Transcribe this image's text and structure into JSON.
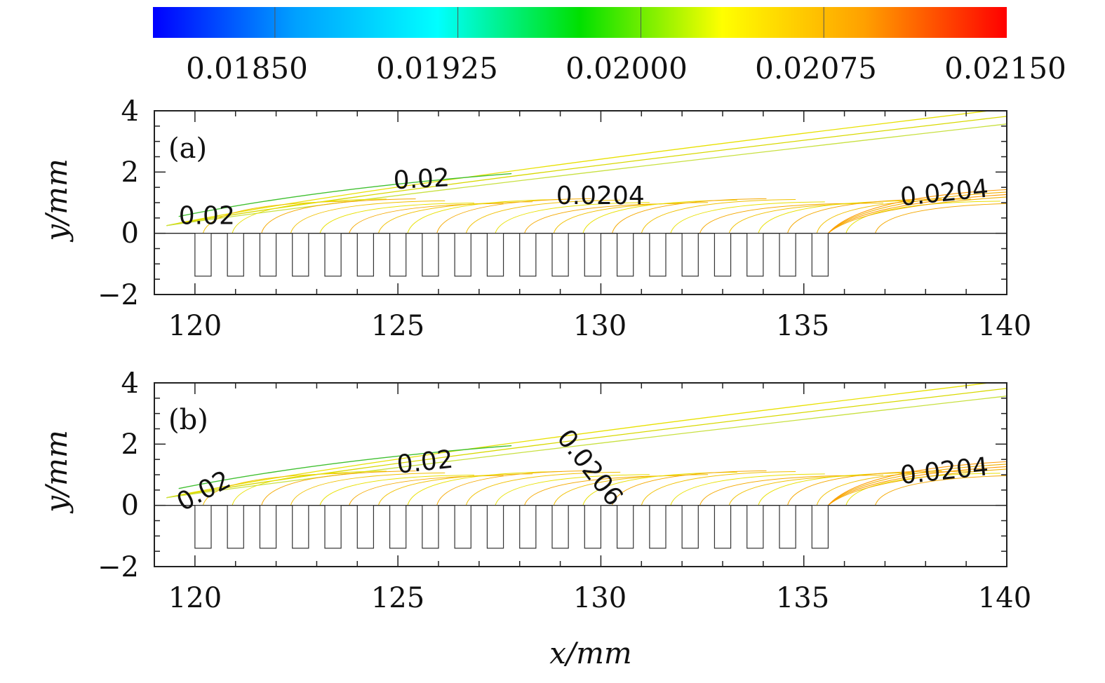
{
  "chart_data": {
    "type": "contour",
    "colorbar": {
      "ticks": [
        "0.01850",
        "0.01925",
        "0.02000",
        "0.02075",
        "0.02150"
      ],
      "tick_values": [
        0.0185,
        0.01925,
        0.02,
        0.02075,
        0.0215
      ],
      "range": [
        0.018,
        0.0215
      ],
      "colors": [
        "#0000ff",
        "#00a0ff",
        "#00ffff",
        "#00e000",
        "#ffff00",
        "#ffa000",
        "#ff0000"
      ]
    },
    "xlabel": "x/mm",
    "ylabel": "y/mm",
    "xlim": [
      119,
      140
    ],
    "ylim": [
      -2,
      4
    ],
    "xticks": [
      "120",
      "125",
      "130",
      "135",
      "140"
    ],
    "xtick_values": [
      120,
      125,
      130,
      135,
      140
    ],
    "yticks": [
      "4",
      "2",
      "0",
      "−2"
    ],
    "ytick_values": [
      4,
      2,
      0,
      -2
    ],
    "ribs": {
      "count": 20,
      "start_x": 120.0,
      "pitch": 0.8,
      "width": 0.4,
      "depth": -1.4
    },
    "panels": [
      {
        "label": "(a)",
        "contour_labels": [
          {
            "text": "0.02",
            "x": 119.6,
            "y": 0.3,
            "angle": 0
          },
          {
            "text": "0.02",
            "x": 124.9,
            "y": 1.45,
            "angle": -3
          },
          {
            "text": "0.0204",
            "x": 128.9,
            "y": 0.95,
            "angle": 0
          },
          {
            "text": "0.0204",
            "x": 137.4,
            "y": 0.9,
            "angle": -6
          }
        ]
      },
      {
        "label": "(b)",
        "contour_labels": [
          {
            "text": "0.02",
            "x": 119.7,
            "y": -0.2,
            "angle": -28
          },
          {
            "text": "0.02",
            "x": 125.0,
            "y": 1.05,
            "angle": -6
          },
          {
            "text": "0.0206",
            "x": 128.9,
            "y": 2.2,
            "angle": 52
          },
          {
            "text": "0.0204",
            "x": 137.4,
            "y": 0.7,
            "angle": -6
          }
        ]
      }
    ]
  }
}
